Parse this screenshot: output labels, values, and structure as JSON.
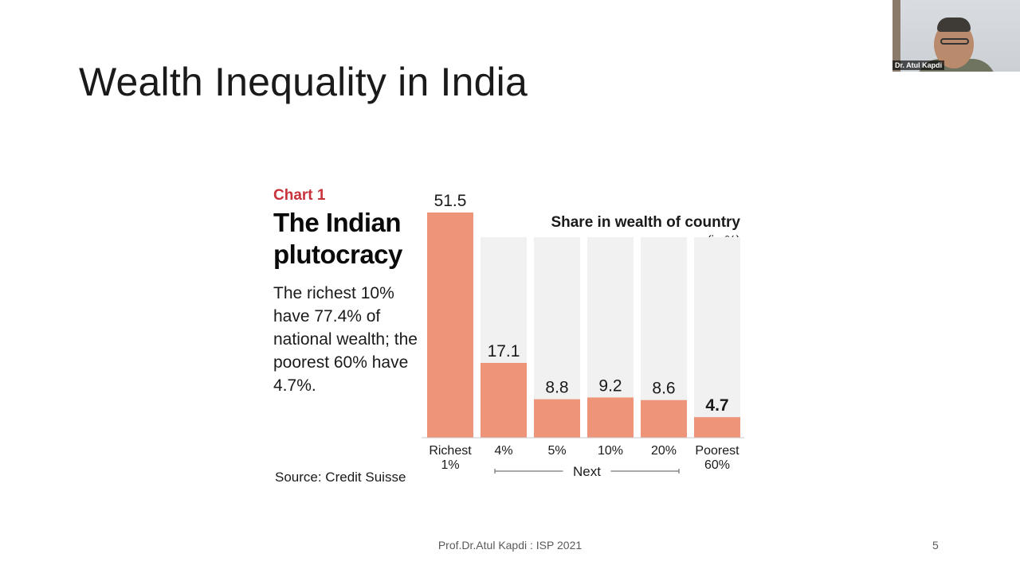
{
  "slide": {
    "title": "Wealth Inequality in India",
    "footer": "Prof.Dr.Atul Kapdi : ISP 2021",
    "page_number": "5"
  },
  "video": {
    "participant_name": "Dr. Atul Kapdi"
  },
  "chart_panel": {
    "label": "Chart 1",
    "heading": "The Indian plutocracy",
    "description": "The richest 10% have 77.4% of national wealth; the poorest 60% have 4.7%.",
    "source": "Source: Credit Suisse",
    "group_label": "Next"
  },
  "colors": {
    "bar": "#ed9479",
    "bar_background": "#f1f1f1",
    "label_red": "#c8323a"
  },
  "chart_data": {
    "type": "bar",
    "title": "Share in wealth of country",
    "unit_label": "(in %)",
    "categories": [
      [
        "Richest",
        "1%"
      ],
      [
        "4%"
      ],
      [
        "5%"
      ],
      [
        "10%"
      ],
      [
        "20%"
      ],
      [
        "Poorest",
        "60%"
      ]
    ],
    "values": [
      51.5,
      17.1,
      8.8,
      9.2,
      8.6,
      4.7
    ],
    "value_labels": [
      "51.5",
      "17.1",
      "8.8",
      "9.2",
      "8.6",
      "4.7"
    ],
    "highlight_index": 5,
    "ylim": [
      0,
      51.5
    ],
    "grid": false,
    "legend": "none"
  }
}
